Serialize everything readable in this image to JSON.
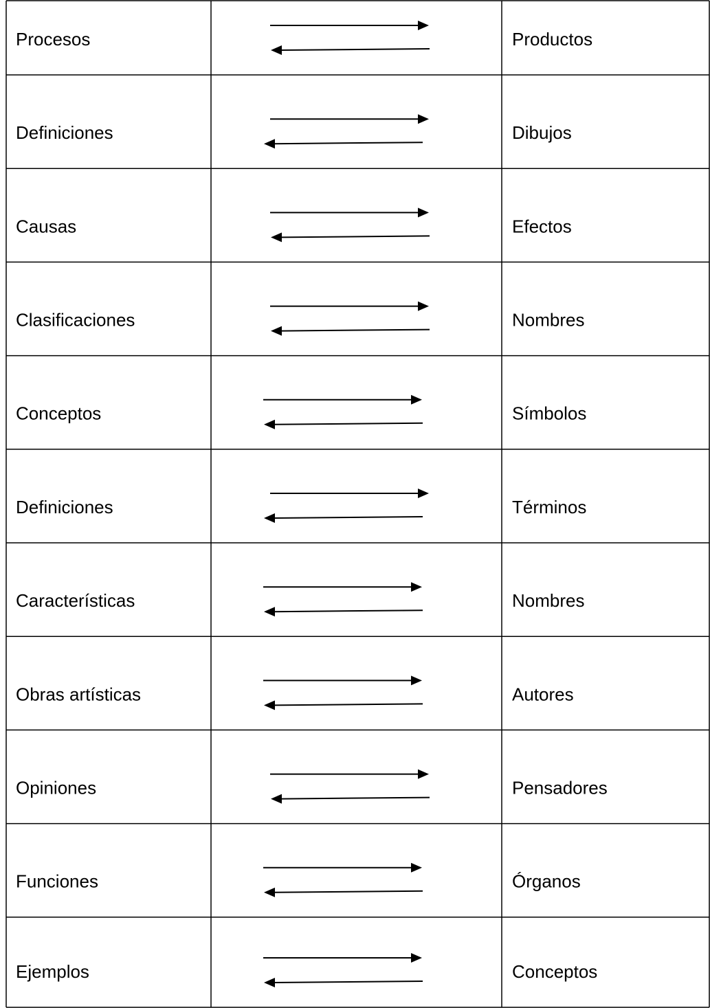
{
  "table": {
    "rows": [
      [
        "Procesos",
        "Productos"
      ],
      [
        "Definiciones",
        "Dibujos"
      ],
      [
        "Causas",
        "Efectos"
      ],
      [
        "Clasificaciones",
        "Nombres"
      ],
      [
        "Conceptos",
        "Símbolos"
      ],
      [
        "Definiciones",
        "Términos"
      ],
      [
        "Características",
        "Nombres"
      ],
      [
        "Obras artísticas",
        "Autores"
      ],
      [
        "Opiniones",
        "Pensadores"
      ],
      [
        "Funciones",
        "Órganos"
      ],
      [
        "Ejemplos",
        "Conceptos"
      ]
    ]
  }
}
